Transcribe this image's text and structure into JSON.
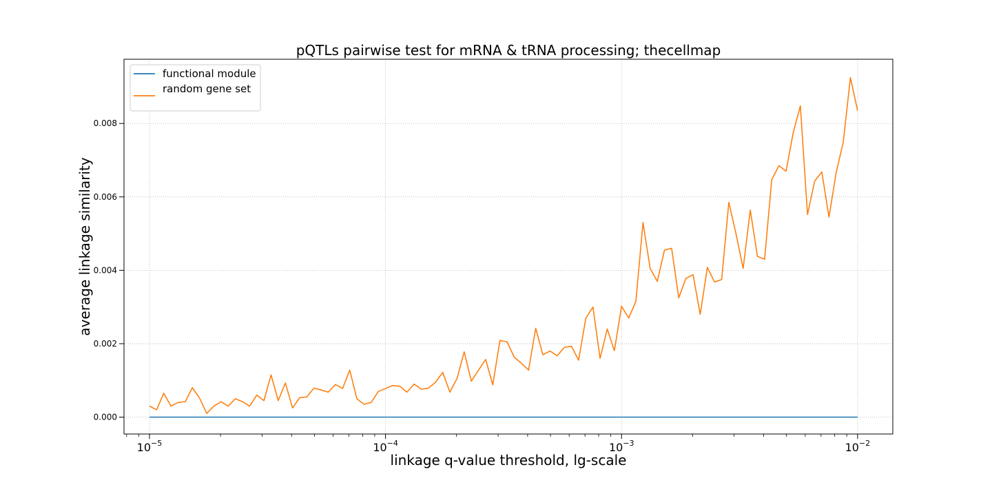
{
  "chart_data": {
    "type": "line",
    "title": "pQTLs pairwise test for mRNA & tRNA processing; thecellmap",
    "xlabel": "linkage q-value threshold, lg-scale",
    "ylabel": "average linkage similarity",
    "xscale": "log",
    "xlim": [
      7.8e-06,
      0.0141
    ],
    "ylim": [
      -0.00046,
      0.00975
    ],
    "grid": true,
    "legend_position": "top-left",
    "x_ticks": [
      {
        "value": 1e-05,
        "base": "10",
        "exp": "−5"
      },
      {
        "value": 0.0001,
        "base": "10",
        "exp": "−4"
      },
      {
        "value": 0.001,
        "base": "10",
        "exp": "−3"
      },
      {
        "value": 0.01,
        "base": "10",
        "exp": "−2"
      }
    ],
    "y_ticks": [
      {
        "value": 0.0,
        "label": "0.000"
      },
      {
        "value": 0.002,
        "label": "0.002"
      },
      {
        "value": 0.004,
        "label": "0.004"
      },
      {
        "value": 0.006,
        "label": "0.006"
      },
      {
        "value": 0.008,
        "label": "0.008"
      }
    ],
    "x_min": 1e-05,
    "x_max": 0.01,
    "n_points": 100,
    "series": [
      {
        "name": "functional module",
        "color": "#1f77b4",
        "values": [
          0,
          0,
          0,
          0,
          0,
          0,
          0,
          0,
          0,
          0,
          0,
          0,
          0,
          0,
          0,
          0,
          0,
          0,
          0,
          0,
          0,
          0,
          0,
          0,
          0,
          0,
          0,
          0,
          0,
          0,
          0,
          0,
          0,
          0,
          0,
          0,
          0,
          0,
          0,
          0,
          0,
          0,
          0,
          0,
          0,
          0,
          0,
          0,
          0,
          0,
          0,
          0,
          0,
          0,
          0,
          0,
          0,
          0,
          0,
          0,
          0,
          0,
          0,
          0,
          0,
          0,
          0,
          0,
          0,
          0,
          0,
          0,
          0,
          0,
          0,
          0,
          0,
          0,
          0,
          0,
          0,
          0,
          0,
          0,
          0,
          0,
          0,
          0,
          0,
          0,
          0,
          0,
          0,
          0,
          0,
          0,
          0,
          0,
          0,
          0
        ]
      },
      {
        "name": "random gene set",
        "color": "#ff7f0e",
        "values": [
          0.0003,
          0.0002,
          0.00065,
          0.0003,
          0.0004,
          0.00042,
          0.0008,
          0.00052,
          0.0001,
          0.0003,
          0.00042,
          0.0003,
          0.0005,
          0.00042,
          0.0003,
          0.0006,
          0.00045,
          0.00115,
          0.00045,
          0.00093,
          0.00025,
          0.00053,
          0.00055,
          0.00079,
          0.00074,
          0.00068,
          0.00089,
          0.00078,
          0.00128,
          0.0005,
          0.00035,
          0.0004,
          0.0007,
          0.00078,
          0.00086,
          0.00084,
          0.00068,
          0.0009,
          0.00076,
          0.00079,
          0.00095,
          0.00122,
          0.00068,
          0.00105,
          0.00178,
          0.00098,
          0.00128,
          0.00157,
          0.00088,
          0.00209,
          0.00205,
          0.00163,
          0.00147,
          0.00128,
          0.00242,
          0.0017,
          0.0018,
          0.00167,
          0.0019,
          0.00193,
          0.00155,
          0.00269,
          0.003,
          0.0016,
          0.0024,
          0.00181,
          0.00302,
          0.0027,
          0.00315,
          0.0053,
          0.00405,
          0.0037,
          0.00455,
          0.0046,
          0.00325,
          0.00378,
          0.00388,
          0.0028,
          0.00408,
          0.00368,
          0.00375,
          0.00585,
          0.005,
          0.00405,
          0.00564,
          0.00438,
          0.0043,
          0.00647,
          0.00685,
          0.0067,
          0.00775,
          0.00848,
          0.00552,
          0.00643,
          0.00668,
          0.00545,
          0.00665,
          0.0075,
          0.00925,
          0.00835
        ]
      }
    ]
  }
}
